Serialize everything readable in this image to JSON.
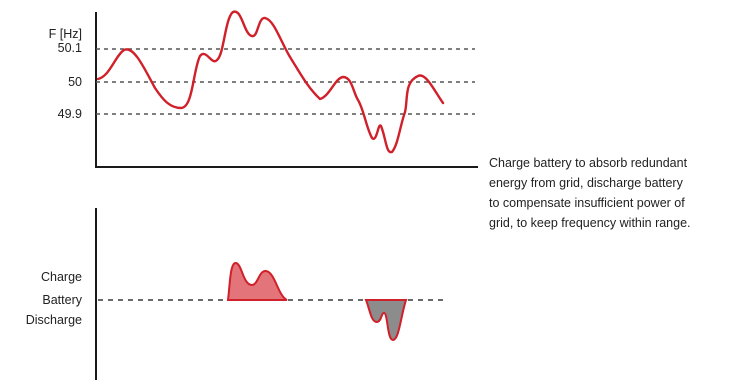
{
  "frequency_chart": {
    "axis_label": "F [Hz]",
    "levels": [
      "50.1",
      "50",
      "49.9"
    ]
  },
  "battery_chart": {
    "charge_label": "Charge",
    "battery_label": "Battery",
    "discharge_label": "Discharge"
  },
  "caption": [
    "Charge battery to absorb redundant",
    "energy from grid, discharge battery",
    "to compensate insufficient power of",
    "grid, to keep frequency within range."
  ],
  "colors": {
    "frequency_line": "#d0202a",
    "charge_fill": "#e2747a",
    "discharge_fill": "#8c8c8c",
    "axis": "#1a1a1a",
    "dashed": "#555555"
  }
}
